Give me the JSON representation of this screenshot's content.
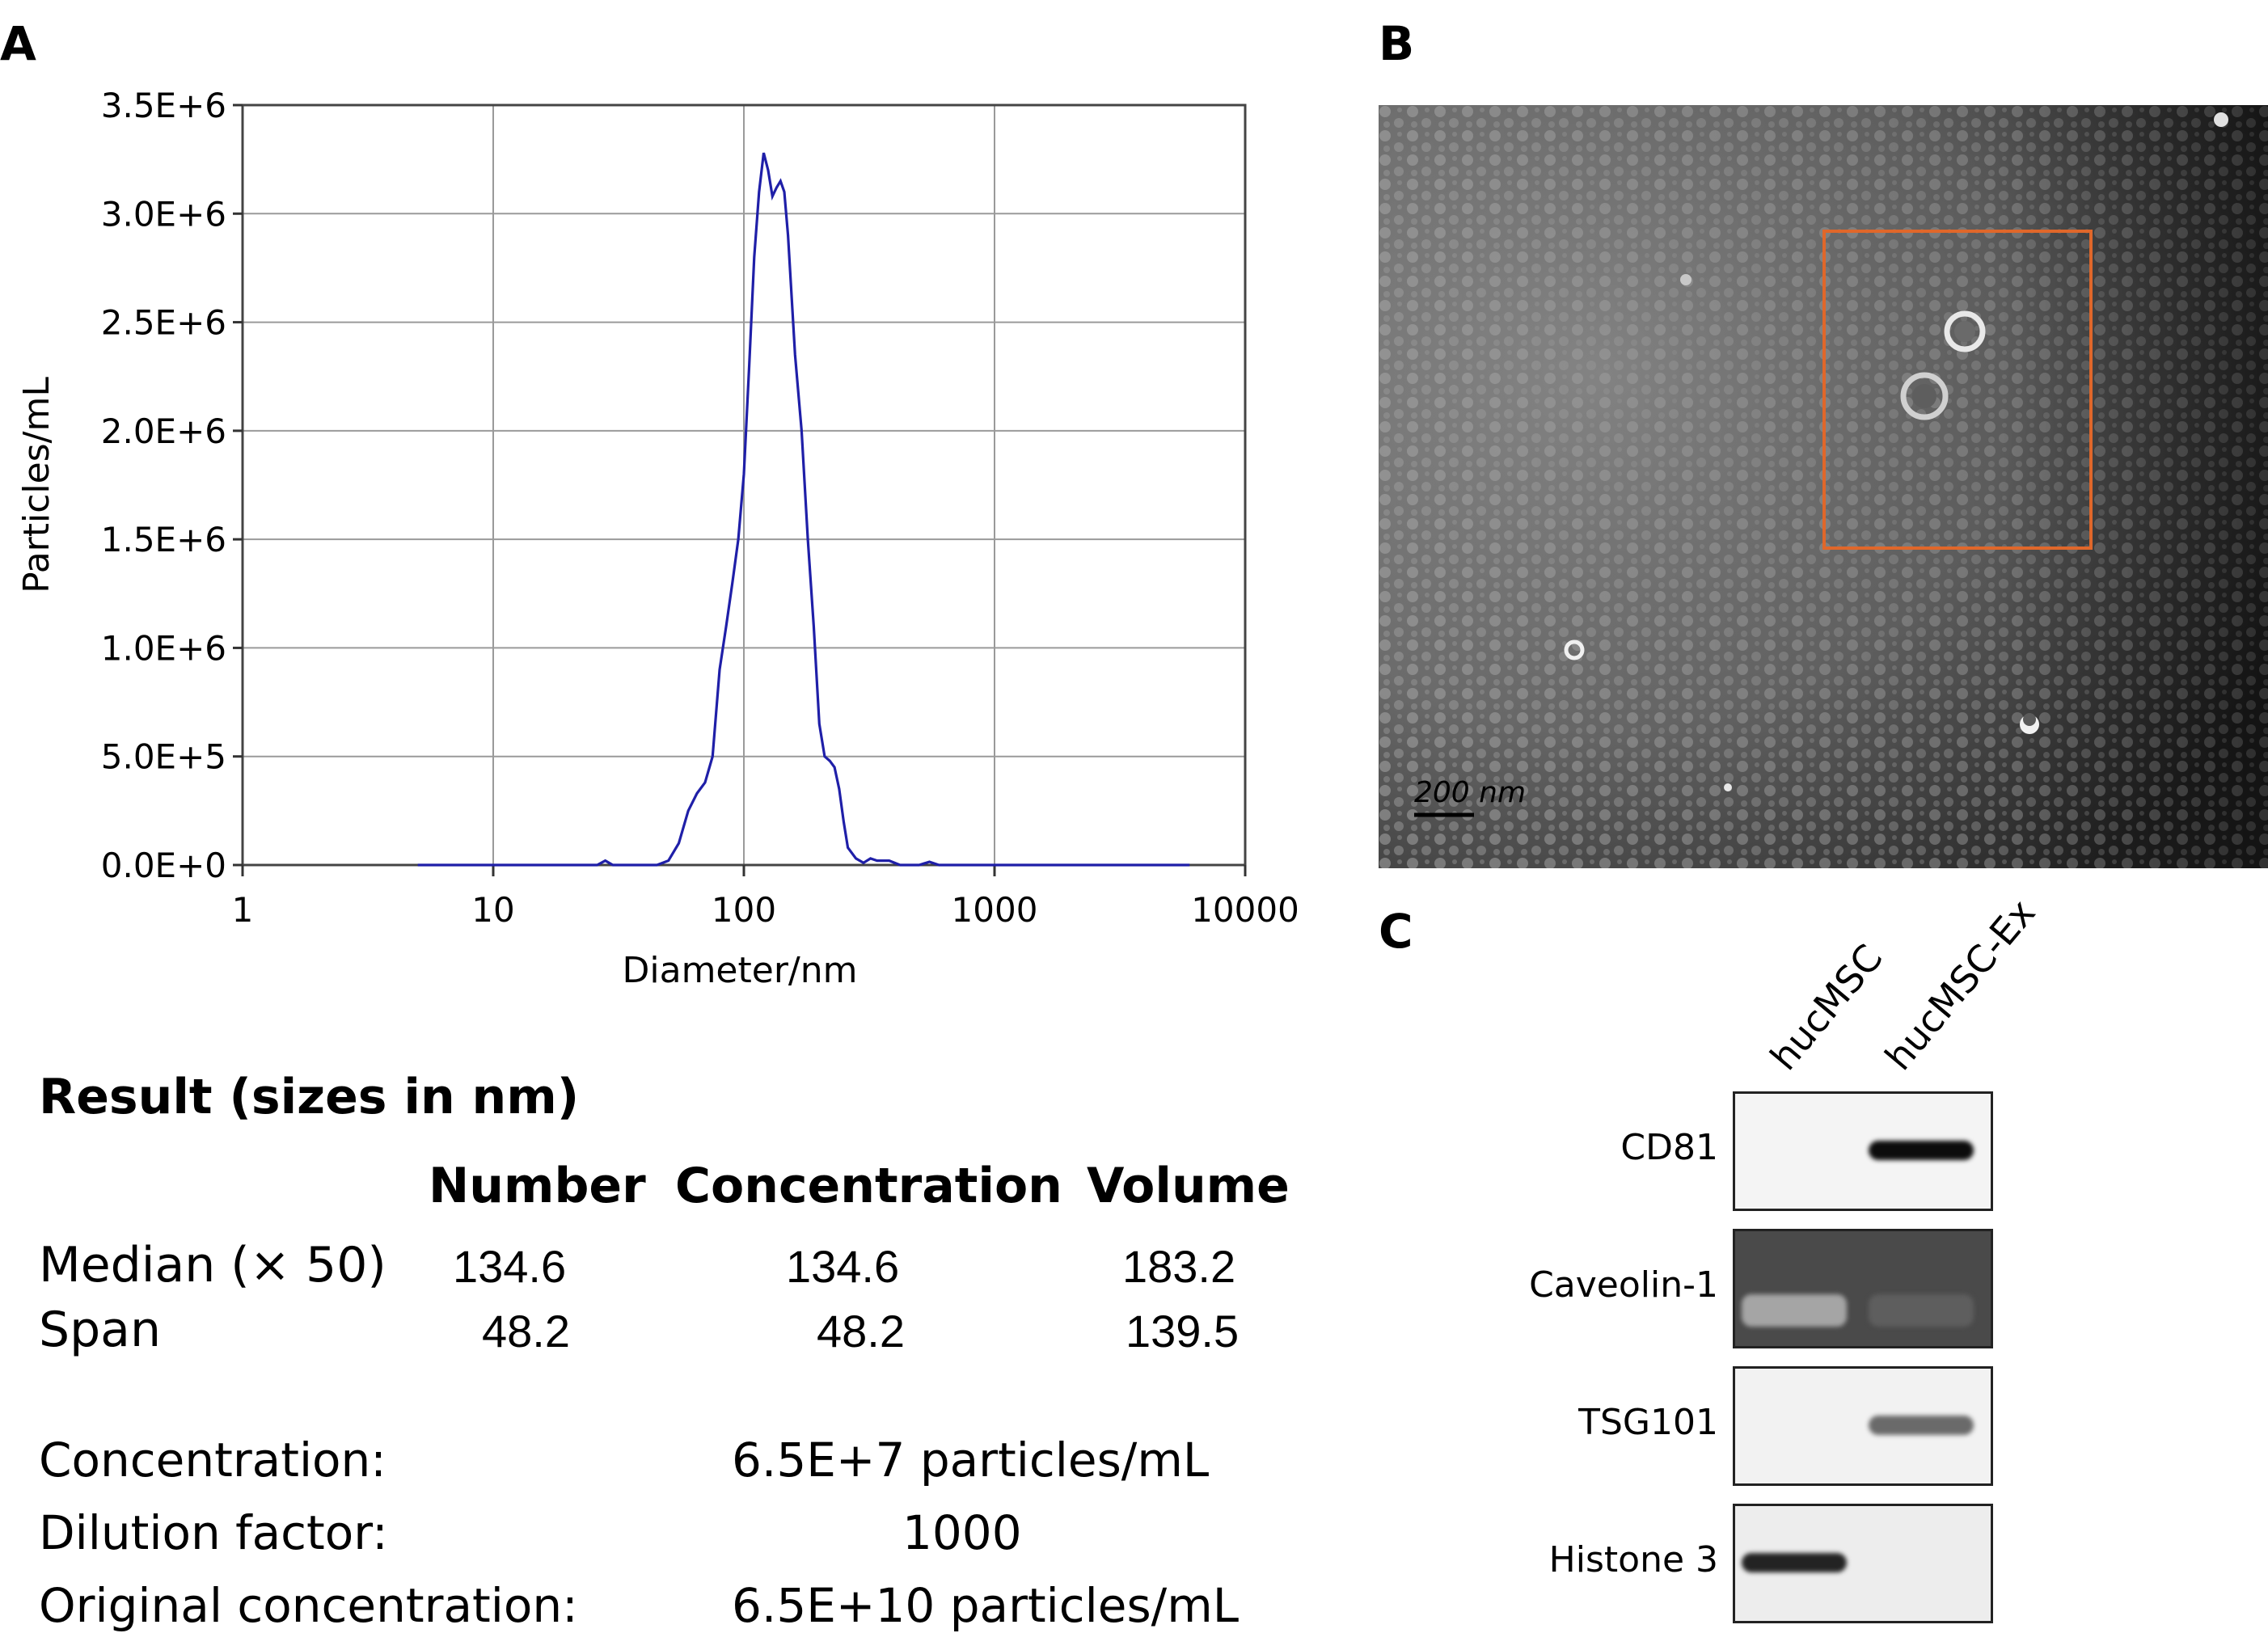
{
  "panels": {
    "a": "A",
    "b": "B",
    "c": "C"
  },
  "chart_data": {
    "type": "line",
    "x_scale": "log",
    "xlabel": "Diameter/nm",
    "ylabel": "Particles/mL",
    "xlim": [
      1,
      10000
    ],
    "ylim": [
      0,
      3500000
    ],
    "x_ticks": [
      1,
      10,
      100,
      1000,
      10000
    ],
    "x_tick_labels": [
      "1",
      "10",
      "100",
      "1000",
      "10000"
    ],
    "y_ticks": [
      0,
      500000,
      1000000,
      1500000,
      2000000,
      2500000,
      3000000,
      3500000
    ],
    "y_tick_labels": [
      "0.0E+0",
      "5.0E+5",
      "1.0E+6",
      "1.5E+6",
      "2.0E+6",
      "2.5E+6",
      "3.0E+6",
      "3.5E+6"
    ],
    "grid": true,
    "line_color": "#1f1fa8",
    "series": [
      {
        "x": [
          5,
          20,
          26,
          28,
          30,
          35,
          45,
          50,
          55,
          60,
          65,
          70,
          75,
          80,
          85,
          90,
          95,
          100,
          105,
          110,
          115,
          120,
          125,
          130,
          135,
          140,
          145,
          150,
          160,
          170,
          180,
          190,
          200,
          210,
          220,
          230,
          240,
          250,
          260,
          280,
          300,
          320,
          340,
          360,
          380,
          420,
          500,
          550,
          600,
          650,
          700,
          800,
          1000,
          2000,
          6000
        ],
        "y": [
          0,
          0,
          0,
          20000,
          0,
          0,
          0,
          20000,
          100000,
          250000,
          330000,
          380000,
          500000,
          900000,
          1100000,
          1300000,
          1500000,
          1800000,
          2300000,
          2800000,
          3100000,
          3280000,
          3200000,
          3080000,
          3120000,
          3150000,
          3100000,
          2900000,
          2350000,
          2000000,
          1500000,
          1100000,
          650000,
          500000,
          480000,
          450000,
          350000,
          200000,
          80000,
          30000,
          10000,
          30000,
          20000,
          20000,
          20000,
          0,
          0,
          15000,
          0,
          0,
          0,
          0,
          0,
          0,
          0
        ]
      }
    ]
  },
  "tem": {
    "scale_label": "200 nm"
  },
  "results": {
    "title": "Result (sizes in nm)",
    "columns": [
      "Number",
      "Concentration",
      "Volume"
    ],
    "rows": [
      {
        "label": "Median (× 50)",
        "values": [
          "134.6",
          "134.6",
          "183.2"
        ]
      },
      {
        "label": "Span",
        "values": [
          "48.2",
          "48.2",
          "139.5"
        ]
      }
    ],
    "summary": [
      {
        "label": "Concentration:",
        "value": "6.5E+7 particles/mL"
      },
      {
        "label": "Dilution factor:",
        "value": "1000"
      },
      {
        "label": "Original concentration:",
        "value": "6.5E+10 particles/mL"
      }
    ]
  },
  "western": {
    "lanes": [
      "hucMSC",
      "hucMSC-Ex"
    ],
    "blots": [
      {
        "label": "CD81",
        "band_lane1": 0.0,
        "band_lane2": 0.95
      },
      {
        "label": "Caveolin-1",
        "band_lane1": 0.3,
        "band_lane2": 0.6
      },
      {
        "label": "TSG101",
        "band_lane1": 0.0,
        "band_lane2": 0.55
      },
      {
        "label": "Histone 3",
        "band_lane1": 0.85,
        "band_lane2": 0.0
      }
    ]
  }
}
